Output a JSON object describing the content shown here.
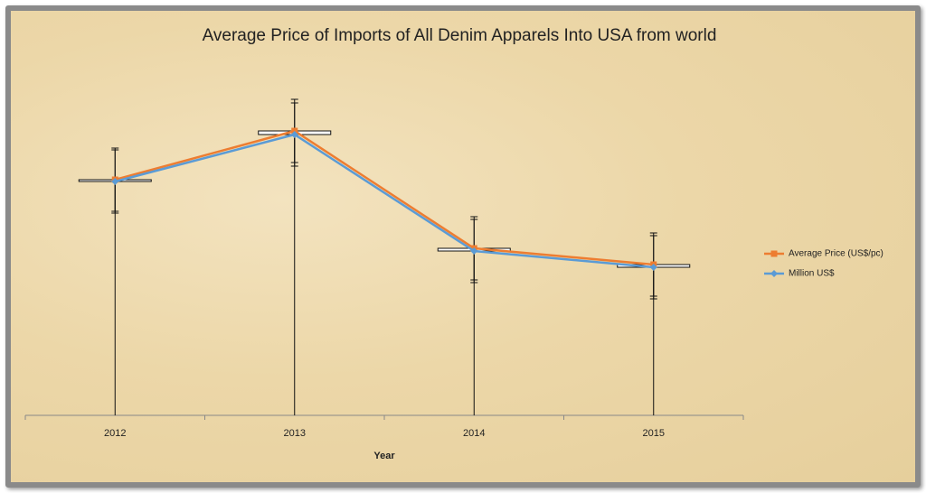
{
  "chart_data": {
    "type": "line",
    "title": "Average Price of Imports of All Denim Apparels Into USA from world",
    "xlabel": "Year",
    "categories": [
      "2012",
      "2013",
      "2014",
      "2015"
    ],
    "ylim": [
      0,
      400
    ],
    "series": [
      {
        "name": "Average Price (US$/pc)",
        "color": "#ed7d31",
        "marker": "square",
        "values": [
          261,
          315,
          185,
          167
        ],
        "errors": [
          35,
          35,
          35,
          35
        ]
      },
      {
        "name": "Million US$",
        "color": "#5b9bd5",
        "marker": "diamond",
        "values": [
          259,
          311,
          182,
          164
        ],
        "errors": [
          35,
          35,
          35,
          35
        ]
      }
    ],
    "drop_lines": true,
    "up_down_bars": true,
    "legend": "right"
  }
}
